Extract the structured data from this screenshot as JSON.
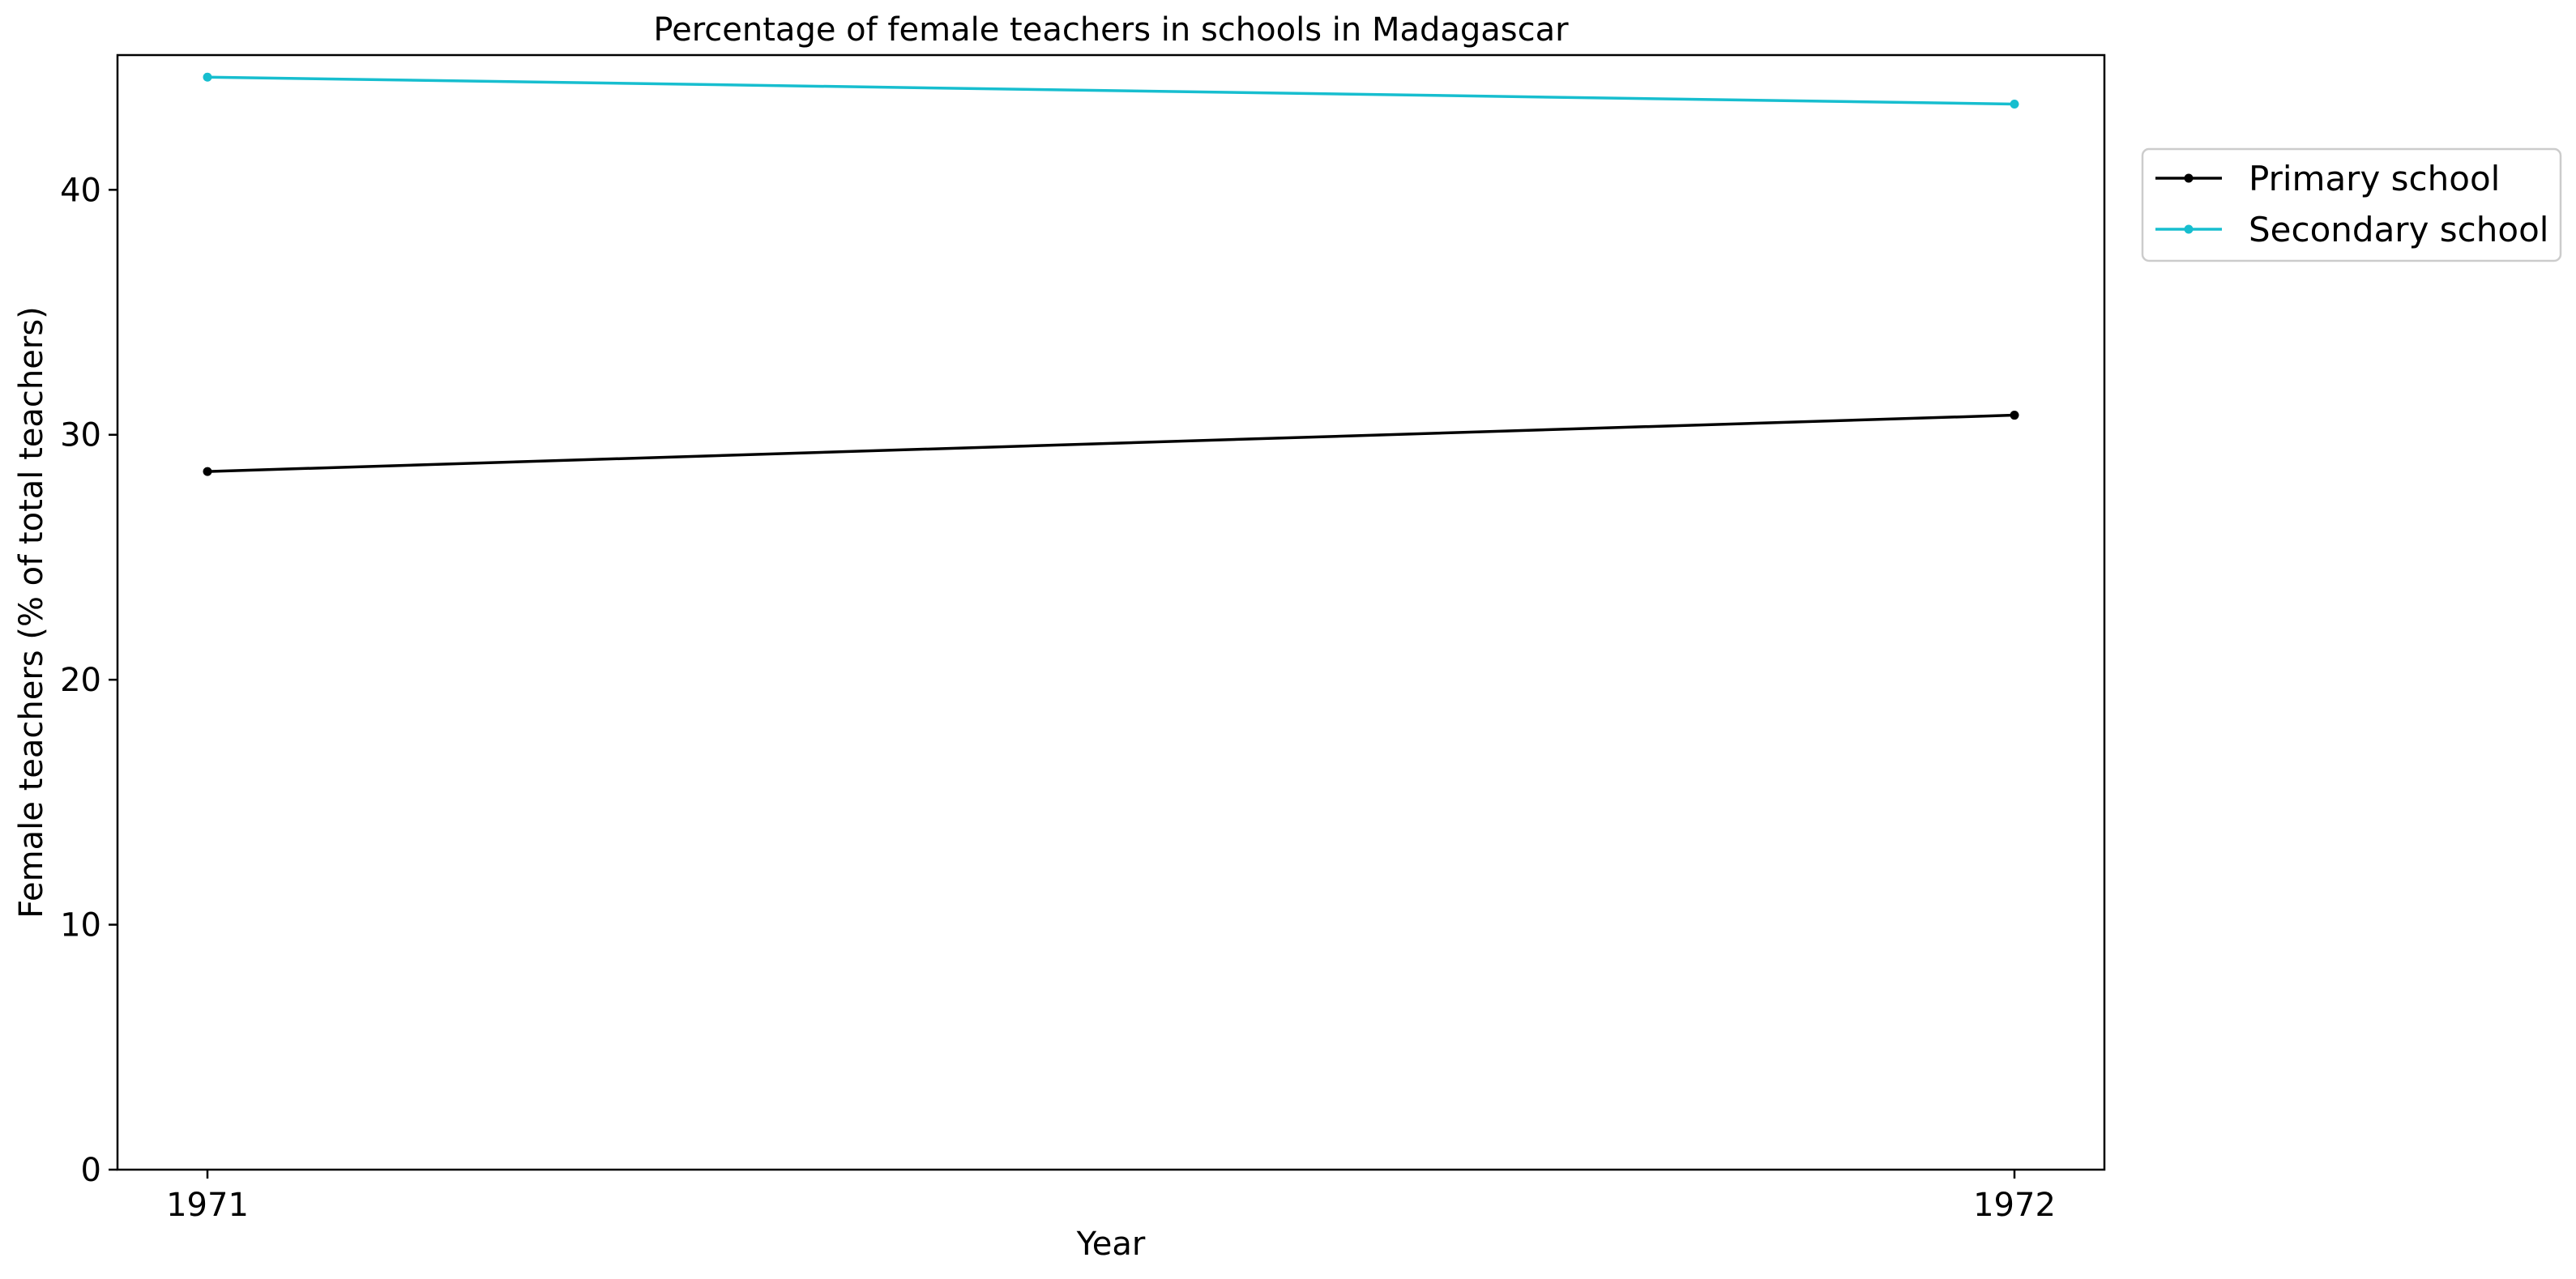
{
  "chart_data": {
    "type": "line",
    "title": "Percentage of female teachers in schools in Madagascar",
    "xlabel": "Year",
    "ylabel": "Female teachers (% of total teachers)",
    "x": [
      1971,
      1972
    ],
    "x_ticks": [
      "1971",
      "1972"
    ],
    "y_ticks": [
      "0",
      "10",
      "20",
      "30",
      "40"
    ],
    "ylim": [
      0,
      45.5
    ],
    "grid": false,
    "legend_position": "outside-right-top",
    "series": [
      {
        "name": "Primary school",
        "color": "#000000",
        "marker": "dot",
        "values": [
          28.5,
          30.8
        ]
      },
      {
        "name": "Secondary school",
        "color": "#17becf",
        "marker": "dot",
        "values": [
          44.6,
          43.5
        ]
      }
    ]
  }
}
